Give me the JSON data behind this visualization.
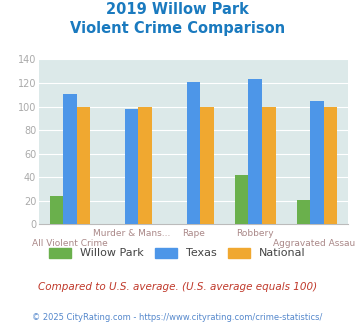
{
  "title_line1": "2019 Willow Park",
  "title_line2": "Violent Crime Comparison",
  "willow_park": [
    24,
    0,
    0,
    42,
    21
  ],
  "texas": [
    111,
    98,
    121,
    123,
    105
  ],
  "national": [
    100,
    100,
    100,
    100,
    100
  ],
  "color_willow": "#6ab04c",
  "color_texas": "#4d96e8",
  "color_national": "#f0a830",
  "ylim": [
    0,
    140
  ],
  "yticks": [
    0,
    20,
    40,
    60,
    80,
    100,
    120,
    140
  ],
  "top_labels": [
    "",
    "Murder & Mans...",
    "Rape",
    "Robbery",
    ""
  ],
  "bottom_labels": [
    "All Violent Crime",
    "",
    "",
    "",
    "Aggravated Assault"
  ],
  "footnote1": "Compared to U.S. average. (U.S. average equals 100)",
  "footnote2": "© 2025 CityRating.com - https://www.cityrating.com/crime-statistics/",
  "bg_color": "#dce9e9",
  "title_color": "#1a7abf",
  "footnote1_color": "#c0392b",
  "footnote2_color": "#5588cc",
  "tick_color": "#aaaaaa",
  "label_color": "#aa8888"
}
